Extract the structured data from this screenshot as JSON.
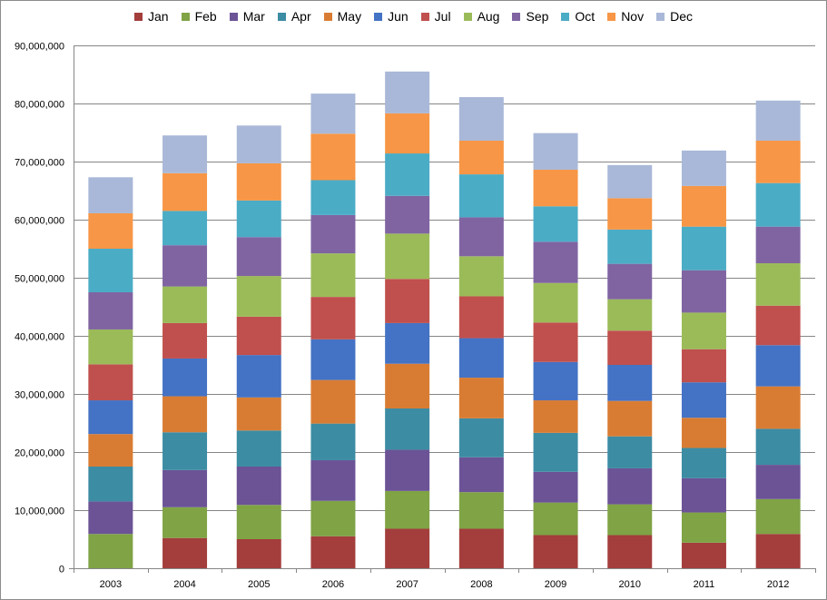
{
  "chart_data": {
    "type": "bar",
    "stacked": true,
    "categories": [
      "2003",
      "2004",
      "2005",
      "2006",
      "2007",
      "2008",
      "2009",
      "2010",
      "2011",
      "2012"
    ],
    "ylim": [
      0,
      90000000
    ],
    "y_ticks": [
      "0",
      "10,000,000",
      "20,000,000",
      "30,000,000",
      "40,000,000",
      "50,000,000",
      "60,000,000",
      "70,000,000",
      "80,000,000",
      "90,000,000"
    ],
    "y_tick_values": [
      0,
      10000000,
      20000000,
      30000000,
      40000000,
      50000000,
      60000000,
      70000000,
      80000000,
      90000000
    ],
    "grid": true,
    "legend_position": "top",
    "title": "",
    "xlabel": "",
    "ylabel": "",
    "series": [
      {
        "name": "Jan",
        "color": "#a33e3c",
        "values": [
          0,
          5200000,
          5000000,
          5500000,
          6800000,
          6800000,
          5700000,
          5700000,
          4400000,
          5900000
        ]
      },
      {
        "name": "Feb",
        "color": "#7fa345",
        "values": [
          5900000,
          5300000,
          5900000,
          6100000,
          6500000,
          6300000,
          5600000,
          5300000,
          5200000,
          6000000
        ]
      },
      {
        "name": "Mar",
        "color": "#6b5396",
        "values": [
          5600000,
          6400000,
          6600000,
          7000000,
          7100000,
          6000000,
          5300000,
          6200000,
          5900000,
          5900000
        ]
      },
      {
        "name": "Apr",
        "color": "#3c8ca3",
        "values": [
          6000000,
          6500000,
          6200000,
          6300000,
          7100000,
          6700000,
          6700000,
          5500000,
          5200000,
          6200000
        ]
      },
      {
        "name": "May",
        "color": "#d97c33",
        "values": [
          5600000,
          6200000,
          5700000,
          7500000,
          7700000,
          7000000,
          5600000,
          6100000,
          5200000,
          7300000
        ]
      },
      {
        "name": "Jun",
        "color": "#4472c4",
        "values": [
          5800000,
          6500000,
          7300000,
          7000000,
          7000000,
          6800000,
          6600000,
          6200000,
          6100000,
          7100000
        ]
      },
      {
        "name": "Jul",
        "color": "#c0504d",
        "values": [
          6200000,
          6100000,
          6600000,
          7300000,
          7600000,
          7200000,
          6800000,
          5900000,
          5700000,
          6800000
        ]
      },
      {
        "name": "Aug",
        "color": "#9bbb59",
        "values": [
          6000000,
          6300000,
          7000000,
          7500000,
          7800000,
          6900000,
          6800000,
          5400000,
          6300000,
          7300000
        ]
      },
      {
        "name": "Sep",
        "color": "#8064a2",
        "values": [
          6400000,
          7100000,
          6700000,
          6600000,
          6500000,
          6700000,
          7100000,
          6100000,
          7300000,
          6300000
        ]
      },
      {
        "name": "Oct",
        "color": "#4bacc6",
        "values": [
          7500000,
          5900000,
          6300000,
          6000000,
          7300000,
          7400000,
          6100000,
          5900000,
          7500000,
          7500000
        ]
      },
      {
        "name": "Nov",
        "color": "#f79646",
        "values": [
          6100000,
          6500000,
          6400000,
          8000000,
          6900000,
          5800000,
          6300000,
          5400000,
          7000000,
          7300000
        ]
      },
      {
        "name": "Dec",
        "color": "#a9b8d8",
        "values": [
          6200000,
          6500000,
          6500000,
          6900000,
          7200000,
          7500000,
          6300000,
          5700000,
          6100000,
          6900000
        ]
      }
    ]
  }
}
